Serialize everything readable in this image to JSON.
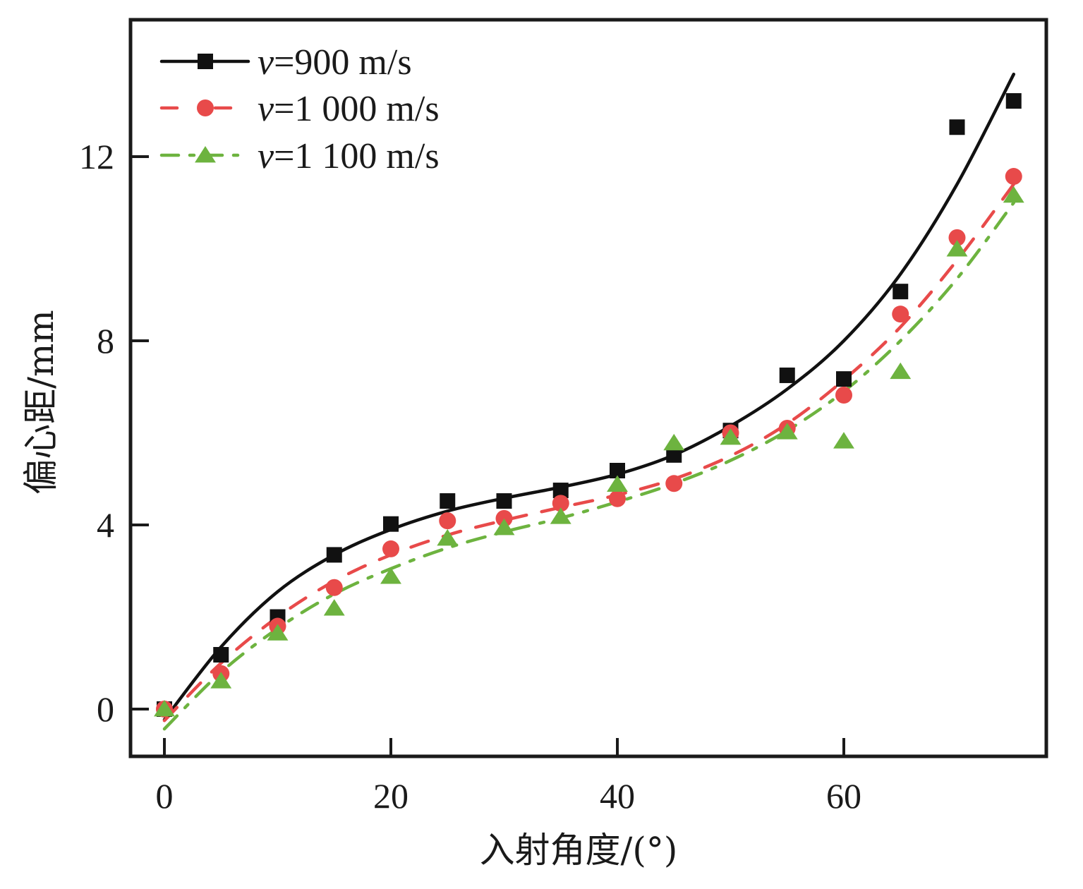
{
  "chart_data": {
    "type": "scatter",
    "title": "",
    "xlabel": "入射角度/(°)",
    "ylabel": "偏心距/mm",
    "xlim": [
      -3,
      78
    ],
    "ylim": [
      -1,
      15
    ],
    "xticks": [
      0,
      20,
      40,
      60
    ],
    "yticks": [
      0,
      4,
      8,
      12
    ],
    "xtick_labels": [
      "0",
      "20",
      "40",
      "60"
    ],
    "ytick_labels": [
      "0",
      "4",
      "8",
      "12"
    ],
    "grid": false,
    "legend_position": "top-left",
    "x": [
      0,
      5,
      10,
      15,
      20,
      25,
      30,
      35,
      40,
      45,
      50,
      55,
      60,
      65,
      70,
      75
    ],
    "series": [
      {
        "name": "v=900 m/s",
        "legend_var": "v",
        "legend_rest": "=900 m/s",
        "color": "#111111",
        "marker": "square",
        "line_style": "solid",
        "values": [
          0.0,
          1.18,
          2.0,
          3.35,
          4.02,
          4.52,
          4.52,
          4.75,
          5.18,
          5.52,
          6.05,
          7.25,
          7.17,
          9.07,
          12.64,
          13.21
        ],
        "fit": {
          "x": [
            0,
            5,
            10,
            15,
            20,
            25,
            30,
            35,
            40,
            45,
            50,
            55,
            60,
            65,
            70,
            75
          ],
          "y": [
            -0.23,
            1.35,
            2.55,
            3.35,
            3.9,
            4.3,
            4.58,
            4.82,
            5.1,
            5.52,
            6.15,
            6.95,
            8.0,
            9.45,
            11.4,
            13.79
          ]
        }
      },
      {
        "name": "v=1 000 m/s",
        "legend_var": "v",
        "legend_rest": "=1 000 m/s",
        "color": "#e84a4a",
        "marker": "circle",
        "line_style": "dash",
        "values": [
          0.0,
          0.77,
          1.8,
          2.64,
          3.48,
          4.09,
          4.14,
          4.47,
          4.57,
          4.9,
          6.0,
          6.1,
          6.82,
          8.58,
          10.24,
          11.57
        ],
        "fit": {
          "x": [
            0,
            5,
            10,
            15,
            20,
            25,
            30,
            35,
            40,
            45,
            50,
            55,
            60,
            65,
            70,
            75
          ],
          "y": [
            -0.25,
            1.0,
            2.0,
            2.78,
            3.35,
            3.78,
            4.1,
            4.38,
            4.65,
            5.0,
            5.5,
            6.2,
            7.15,
            8.3,
            9.75,
            11.4
          ]
        }
      },
      {
        "name": "v=1 100 m/s",
        "legend_var": "v",
        "legend_rest": "=1 100 m/s",
        "color": "#6db33f",
        "marker": "triangle",
        "line_style": "dashdot",
        "values": [
          0.0,
          0.61,
          1.65,
          2.19,
          2.88,
          3.71,
          3.94,
          4.18,
          4.88,
          5.78,
          5.9,
          6.02,
          5.82,
          7.33,
          9.99,
          11.16
        ],
        "fit": {
          "x": [
            0,
            5,
            10,
            15,
            20,
            25,
            30,
            35,
            40,
            45,
            50,
            55,
            60,
            65,
            70,
            75
          ],
          "y": [
            -0.43,
            0.8,
            1.75,
            2.5,
            3.05,
            3.5,
            3.85,
            4.15,
            4.5,
            4.9,
            5.4,
            6.05,
            6.9,
            8.0,
            9.35,
            11.0
          ]
        }
      }
    ]
  }
}
